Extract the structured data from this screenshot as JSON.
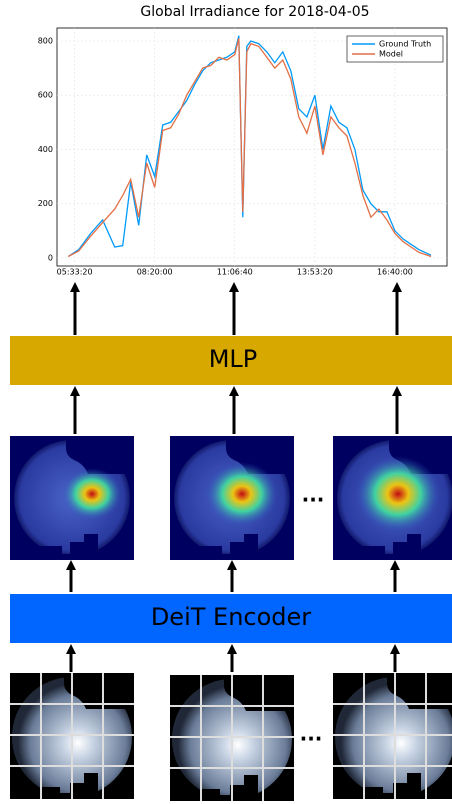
{
  "chart_data": {
    "type": "line",
    "title": "Global Irradiance for 2018-04-05",
    "x": [
      19200,
      20500,
      22000,
      23500,
      25000,
      26000,
      27000,
      28000,
      29000,
      30000,
      31000,
      32000,
      33000,
      34000,
      35000,
      36000,
      37000,
      38000,
      39000,
      40000,
      40500,
      41000,
      41500,
      42000,
      43000,
      44000,
      45000,
      46000,
      47000,
      48000,
      49000,
      50000,
      51000,
      52000,
      53000,
      54000,
      55000,
      56000,
      57000,
      58000,
      59000,
      60000,
      61000,
      62000,
      63000,
      64500
    ],
    "series": [
      {
        "name": "Ground Truth",
        "color": "#009af9",
        "values": [
          5,
          30,
          90,
          140,
          40,
          45,
          280,
          120,
          380,
          300,
          490,
          500,
          540,
          580,
          640,
          690,
          720,
          730,
          740,
          760,
          820,
          150,
          780,
          800,
          790,
          760,
          720,
          760,
          690,
          550,
          520,
          600,
          400,
          560,
          500,
          480,
          400,
          250,
          200,
          170,
          170,
          100,
          70,
          50,
          30,
          10
        ]
      },
      {
        "name": "Model",
        "color": "#e26f46",
        "values": [
          5,
          25,
          80,
          130,
          180,
          230,
          290,
          150,
          350,
          260,
          470,
          480,
          530,
          600,
          650,
          700,
          710,
          740,
          730,
          750,
          810,
          170,
          760,
          790,
          780,
          740,
          700,
          730,
          660,
          520,
          460,
          560,
          380,
          520,
          480,
          450,
          350,
          230,
          150,
          180,
          140,
          90,
          60,
          40,
          20,
          5
        ]
      }
    ],
    "xlim": [
      17800,
      66500
    ],
    "xticks": [
      {
        "value": 20000,
        "label": "05:33:20"
      },
      {
        "value": 30000,
        "label": "08:20:00"
      },
      {
        "value": 40000,
        "label": "11:06:40"
      },
      {
        "value": 50000,
        "label": "13:53:20"
      },
      {
        "value": 60000,
        "label": "16:40:00"
      }
    ],
    "ylim": [
      -30,
      848
    ],
    "yticks": [
      0,
      200,
      400,
      600,
      800
    ],
    "grid": true,
    "legend": "top-right"
  },
  "diagram": {
    "mlp_label": "MLP",
    "encoder_label": "DeiT Encoder",
    "ellipsis": [
      "...",
      "..."
    ]
  }
}
